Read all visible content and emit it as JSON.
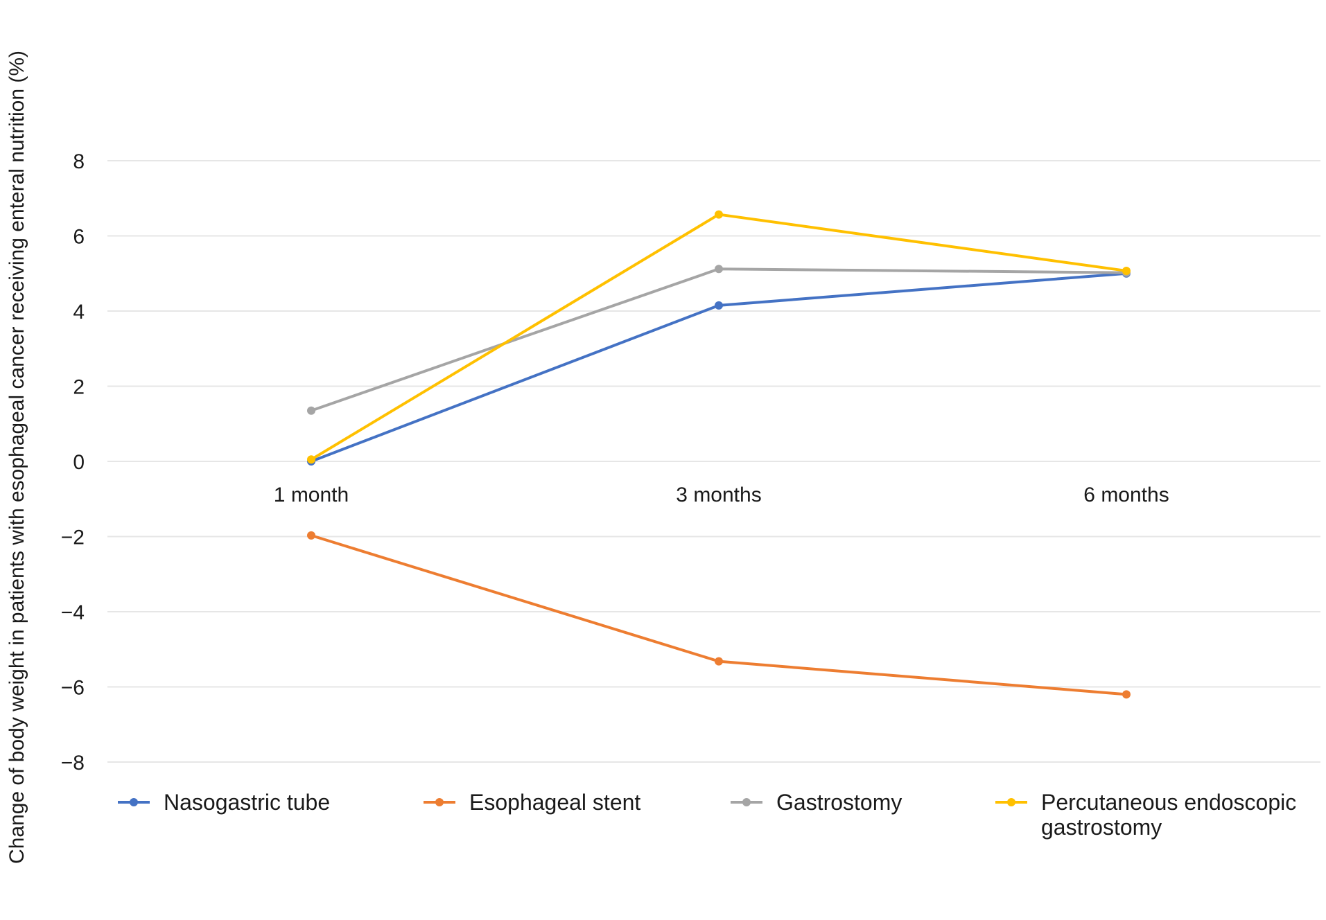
{
  "chart_data": {
    "type": "line",
    "title": "",
    "xlabel": "",
    "ylabel": "Change of body weight in patients with esophageal cancer receiving enteral nutrition (%)",
    "categories": [
      "1 month",
      "3 months",
      "6 months"
    ],
    "yticks": [
      "8",
      "6",
      "4",
      "2",
      "0",
      "−2",
      "−4",
      "−6",
      "−8"
    ],
    "ylim": [
      -8,
      8
    ],
    "grid": true,
    "legend_position": "bottom",
    "series": [
      {
        "name": "Nasogastric tube",
        "values": [
          0.0,
          4.15,
          5.0
        ],
        "color": "#4472c4"
      },
      {
        "name": "Esophageal stent",
        "values": [
          -1.97,
          -5.32,
          -6.2
        ],
        "color": "#ed7d31"
      },
      {
        "name": "Gastrostomy",
        "values": [
          1.35,
          5.12,
          5.02
        ],
        "color": "#a5a5a5"
      },
      {
        "name": "Percutaneous endoscopic gastrostomy",
        "values": [
          0.05,
          6.57,
          5.07
        ],
        "color": "#ffc000"
      }
    ]
  }
}
